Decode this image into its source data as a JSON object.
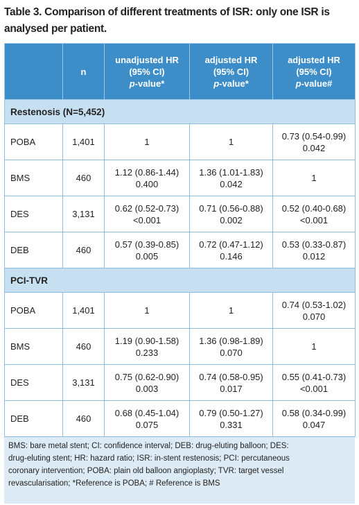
{
  "title": "Table 3. Comparison of different treatments of ISR: only one ISR is analysed per patient.",
  "table": {
    "header": [
      {
        "lines": []
      },
      {
        "lines": [
          "n"
        ]
      },
      {
        "lines": [
          "unadjusted HR",
          "(95% CI)"
        ],
        "p": "p",
        "rest": "-value*"
      },
      {
        "lines": [
          "adjusted HR",
          "(95% CI)"
        ],
        "p": "p",
        "rest": "-value*"
      },
      {
        "lines": [
          "adjusted HR",
          "(95% CI)"
        ],
        "p": "p",
        "rest": "-value#"
      }
    ],
    "sections": [
      {
        "title": "Restenosis (N=5,452)",
        "rows": [
          [
            "POBA",
            "1,401",
            [
              "1"
            ],
            [
              "1"
            ],
            [
              "0.73 (0.54-0.99)",
              "0.042"
            ]
          ],
          [
            "BMS",
            "460",
            [
              "1.12 (0.86-1.44)",
              "0.400"
            ],
            [
              "1.36 (1.01-1.83)",
              "0.042"
            ],
            [
              "1"
            ]
          ],
          [
            "DES",
            "3,131",
            [
              "0.62 (0.52-0.73)",
              "<0.001"
            ],
            [
              "0.71 (0.56-0.88)",
              "0.002"
            ],
            [
              "0.52 (0.40-0.68)",
              "<0.001"
            ]
          ],
          [
            "DEB",
            "460",
            [
              "0.57 (0.39-0.85)",
              "0.005"
            ],
            [
              "0.72 (0.47-1.12)",
              "0.146"
            ],
            [
              "0.53 (0.33-0.87)",
              "0.012"
            ]
          ]
        ]
      },
      {
        "title": "PCI-TVR",
        "rows": [
          [
            "POBA",
            "1,401",
            [
              "1"
            ],
            [
              "1"
            ],
            [
              "0.74 (0.53-1.02)",
              "0.070"
            ]
          ],
          [
            "BMS",
            "460",
            [
              "1.19 (0.90-1.58)",
              "0.233"
            ],
            [
              "1.36 (0.98-1.89)",
              "0.070"
            ],
            [
              "1"
            ]
          ],
          [
            "DES",
            "3,131",
            [
              "0.75 (0.62-0.90)",
              "0.003"
            ],
            [
              "0.74 (0.58-0.95)",
              "0.017"
            ],
            [
              "0.55 (0.41-0.73)",
              "<0.001"
            ]
          ],
          [
            "DEB",
            "460",
            [
              "0.68 (0.45-1.04)",
              "0.075"
            ],
            [
              "0.79 (0.50-1.27)",
              "0.331"
            ],
            [
              "0.58 (0.34-0.99)",
              "0.047"
            ]
          ]
        ]
      }
    ]
  },
  "footnote": [
    "BMS: bare metal stent; CI: confidence interval; DEB: drug-eluting balloon; DES:",
    "drug-eluting stent; HR: hazard ratio; ISR: in-stent restenosis; PCI: percutaneous",
    "coronary intervention; POBA: plain old balloon angioplasty; TVR: target vessel",
    "revascularisation; *Reference is POBA; # Reference is BMS"
  ]
}
